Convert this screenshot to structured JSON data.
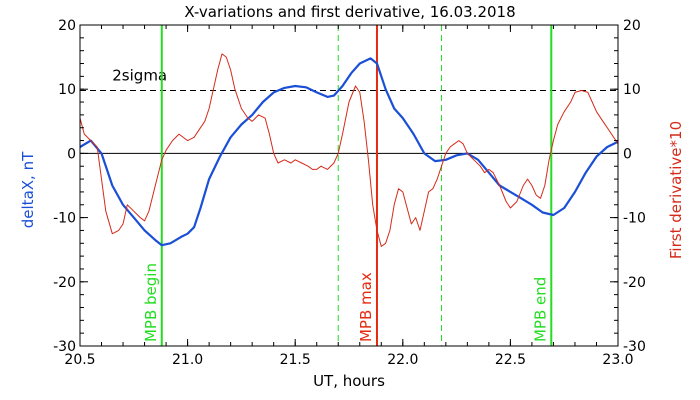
{
  "chart_data": {
    "type": "line",
    "title": "X-variations and first derivative, 16.03.2018",
    "xlabel": "UT, hours",
    "ylabel_left": "deltaX, nT",
    "ylabel_right": "First derivative*10",
    "xlim": [
      20.5,
      23.0
    ],
    "ylim": [
      -30,
      20
    ],
    "xticks": [
      20.5,
      21.0,
      21.5,
      22.0,
      22.5,
      23.0
    ],
    "xtick_labels": [
      "20.5",
      "21.0",
      "21.5",
      "22.0",
      "22.5",
      "23.0"
    ],
    "yticks": [
      -30,
      -20,
      -10,
      0,
      10,
      20
    ],
    "ytick_labels": [
      "-30",
      "-20",
      "-10",
      "0",
      "10",
      "20"
    ],
    "grid": false,
    "colors": {
      "deltaX": "#1a4fd6",
      "derivative": "#d52a1a",
      "mpb_edges": "#22dd22",
      "mpb_max": "#e52a10",
      "sigma": "#000000",
      "left_axis_label": "#1a4fd6",
      "right_axis_label": "#d52a1a"
    },
    "series": [
      {
        "key": "deltaX",
        "x": [
          20.5,
          20.55,
          20.6,
          20.65,
          20.7,
          20.75,
          20.8,
          20.85,
          20.88,
          20.92,
          20.97,
          21.0,
          21.03,
          21.06,
          21.1,
          21.15,
          21.2,
          21.25,
          21.3,
          21.35,
          21.4,
          21.45,
          21.5,
          21.55,
          21.6,
          21.65,
          21.68,
          21.72,
          21.76,
          21.8,
          21.85,
          21.88,
          21.92,
          21.96,
          22.0,
          22.05,
          22.1,
          22.15,
          22.2,
          22.25,
          22.3,
          22.35,
          22.4,
          22.45,
          22.5,
          22.55,
          22.6,
          22.65,
          22.7,
          22.75,
          22.8,
          22.85,
          22.9,
          22.95,
          23.0
        ],
        "y": [
          1.0,
          2.0,
          0.0,
          -5.0,
          -8.0,
          -10.0,
          -12.0,
          -13.5,
          -14.3,
          -14.0,
          -13.0,
          -12.5,
          -11.5,
          -8.5,
          -4.0,
          -0.5,
          2.5,
          4.5,
          6.0,
          8.0,
          9.5,
          10.2,
          10.5,
          10.3,
          9.5,
          8.8,
          9.0,
          10.5,
          12.5,
          14.0,
          14.8,
          14.0,
          10.0,
          7.0,
          5.5,
          3.0,
          0.0,
          -1.2,
          -1.0,
          -0.3,
          0.0,
          -1.0,
          -3.0,
          -5.0,
          -6.0,
          -7.0,
          -8.0,
          -9.2,
          -9.6,
          -8.5,
          -6.0,
          -3.0,
          -0.5,
          1.0,
          1.8
        ]
      },
      {
        "key": "derivative",
        "x": [
          20.5,
          20.52,
          20.55,
          20.58,
          20.6,
          20.62,
          20.65,
          20.68,
          20.7,
          20.72,
          20.75,
          20.78,
          20.8,
          20.82,
          20.85,
          20.88,
          20.9,
          20.93,
          20.96,
          21.0,
          21.03,
          21.06,
          21.08,
          21.1,
          21.12,
          21.14,
          21.16,
          21.18,
          21.2,
          21.22,
          21.25,
          21.28,
          21.3,
          21.33,
          21.36,
          21.38,
          21.4,
          21.42,
          21.45,
          21.48,
          21.5,
          21.53,
          21.56,
          21.58,
          21.6,
          21.62,
          21.65,
          21.68,
          21.7,
          21.72,
          21.75,
          21.78,
          21.8,
          21.82,
          21.84,
          21.86,
          21.88,
          21.9,
          21.92,
          21.94,
          21.96,
          21.98,
          22.0,
          22.02,
          22.04,
          22.06,
          22.08,
          22.1,
          22.12,
          22.14,
          22.16,
          22.18,
          22.2,
          22.22,
          22.24,
          22.26,
          22.28,
          22.3,
          22.33,
          22.36,
          22.38,
          22.4,
          22.42,
          22.45,
          22.48,
          22.5,
          22.53,
          22.56,
          22.58,
          22.6,
          22.62,
          22.64,
          22.66,
          22.68,
          22.7,
          22.72,
          22.75,
          22.78,
          22.8,
          22.83,
          22.86,
          22.88,
          22.9,
          22.93,
          22.96,
          23.0
        ],
        "y": [
          5.5,
          3.0,
          2.0,
          1.0,
          -4.0,
          -9.0,
          -12.5,
          -12.0,
          -11.0,
          -8.0,
          -9.0,
          -10.0,
          -10.5,
          -9.0,
          -5.0,
          -1.0,
          0.5,
          2.0,
          3.0,
          2.0,
          2.5,
          4.0,
          5.0,
          7.0,
          10.0,
          13.0,
          15.5,
          15.0,
          13.0,
          10.0,
          7.0,
          5.5,
          5.0,
          6.0,
          5.5,
          3.0,
          0.0,
          -1.5,
          -1.0,
          -1.5,
          -1.0,
          -1.5,
          -2.0,
          -2.5,
          -2.5,
          -2.0,
          -2.5,
          -1.5,
          0.0,
          3.0,
          8.0,
          10.5,
          9.5,
          5.0,
          -1.0,
          -8.0,
          -12.0,
          -14.5,
          -14.0,
          -12.0,
          -8.0,
          -5.5,
          -6.0,
          -8.5,
          -11.0,
          -10.0,
          -12.0,
          -9.0,
          -6.0,
          -5.5,
          -4.0,
          -2.0,
          0.0,
          1.0,
          1.5,
          2.0,
          1.5,
          0.0,
          -1.0,
          -2.0,
          -3.0,
          -2.5,
          -3.0,
          -5.0,
          -7.5,
          -8.5,
          -7.5,
          -5.0,
          -4.0,
          -5.0,
          -6.5,
          -7.0,
          -5.0,
          -1.0,
          2.0,
          4.5,
          6.5,
          8.0,
          9.5,
          9.8,
          9.5,
          8.0,
          6.5,
          5.0,
          3.5,
          1.5
        ]
      }
    ],
    "hlines": [
      {
        "key": "zero",
        "y": 0,
        "style": "solid"
      },
      {
        "key": "sigma",
        "y": 9.8,
        "style": "dashed",
        "label": "2sigma"
      }
    ],
    "vlines": [
      {
        "key": "mpb-begin",
        "x": 20.88,
        "style": "solid",
        "color_key": "mpb_edges",
        "label": "MPB begin"
      },
      {
        "key": "dash-1",
        "x": 21.7,
        "style": "dashed",
        "color_key": "mpb_edges"
      },
      {
        "key": "mpb-max",
        "x": 21.88,
        "style": "solid",
        "color_key": "mpb_max",
        "label": "MPB max"
      },
      {
        "key": "dash-2",
        "x": 22.18,
        "style": "dashed",
        "color_key": "mpb_edges"
      },
      {
        "key": "mpb-end",
        "x": 22.69,
        "style": "solid",
        "color_key": "mpb_edges",
        "label": "MPB end"
      }
    ]
  }
}
